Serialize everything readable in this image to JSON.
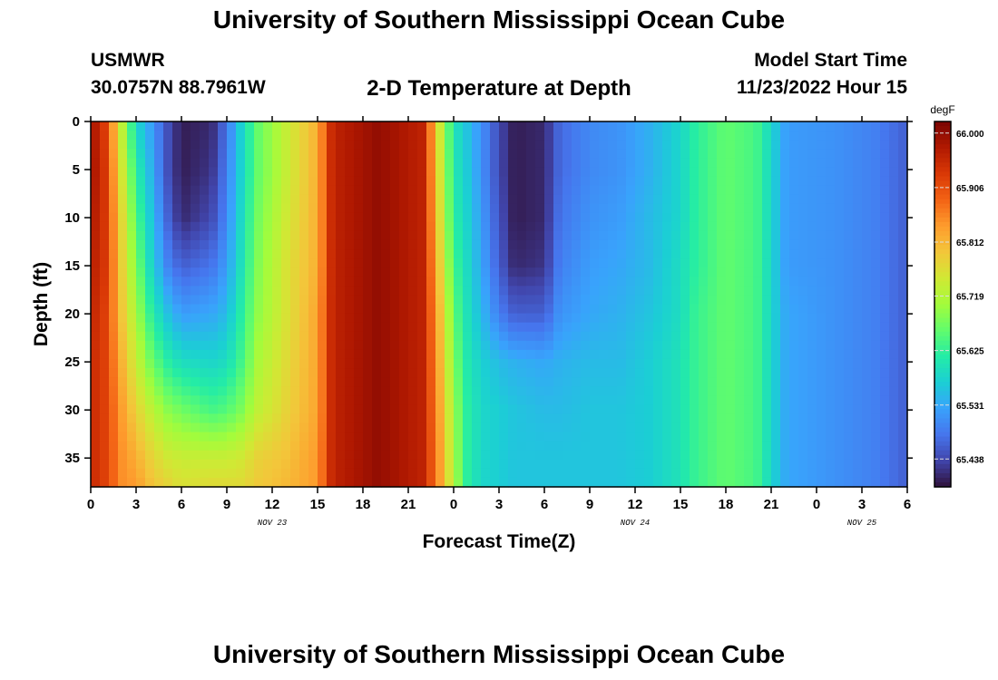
{
  "header": {
    "title": "University of Southern Mississippi Ocean Cube",
    "station": "USMWR",
    "coords": "30.0757N  88.7961W",
    "subtitle": "2-D Temperature at Depth",
    "start_label": "Model Start Time",
    "start_value": "11/23/2022 Hour 15"
  },
  "footer": {
    "title": "University of Southern Mississippi Ocean Cube"
  },
  "chart_data": {
    "type": "heatmap",
    "title": "2-D Temperature at Depth",
    "xlabel": "Forecast Time(Z)",
    "ylabel": "Depth (ft)",
    "x_tick_labels": [
      "0",
      "3",
      "6",
      "9",
      "12",
      "15",
      "18",
      "21",
      "0",
      "3",
      "6",
      "9",
      "12",
      "15",
      "18",
      "21",
      "0",
      "3",
      "6"
    ],
    "date_labels": [
      {
        "label": "NOV 23",
        "hours_from_first_tick": 12
      },
      {
        "label": "NOV 24",
        "hours_from_first_tick": 36
      },
      {
        "label": "NOV 25",
        "hours_from_first_tick": 51
      }
    ],
    "x_range_hours": [
      0,
      54
    ],
    "y_ticks": [
      0,
      5,
      10,
      15,
      20,
      25,
      30,
      35
    ],
    "ylim": [
      0,
      38
    ],
    "y_inverted": true,
    "colorbar": {
      "unit": "degF",
      "ticks": [
        "66.000",
        "65.906",
        "65.812",
        "65.719",
        "65.625",
        "65.531",
        "65.438"
      ],
      "min": 65.39,
      "max": 66.02,
      "colors": [
        "#30123b",
        "#4145ab",
        "#4675ed",
        "#39a2fc",
        "#1bcfd4",
        "#24eca6",
        "#61fc6c",
        "#a4fc3b",
        "#d1e834",
        "#f3c63a",
        "#fe9b2d",
        "#f36315",
        "#d93806",
        "#b11901",
        "#7a0403"
      ]
    },
    "profile_depths_ft": [
      0,
      5,
      10,
      15,
      20,
      25,
      30,
      35,
      38
    ],
    "temperature_profiles_degF": [
      {
        "hour": 0,
        "values": [
          65.99,
          65.99,
          65.98,
          65.97,
          65.96,
          65.95,
          65.95,
          65.95,
          65.95
        ]
      },
      {
        "hour": 1,
        "values": [
          65.92,
          65.93,
          65.93,
          65.93,
          65.92,
          65.92,
          65.92,
          65.92,
          65.92
        ]
      },
      {
        "hour": 2,
        "values": [
          65.74,
          65.76,
          65.78,
          65.79,
          65.8,
          65.82,
          65.84,
          65.85,
          65.85
        ]
      },
      {
        "hour": 3,
        "values": [
          65.58,
          65.62,
          65.65,
          65.68,
          65.71,
          65.74,
          65.78,
          65.82,
          65.84
        ]
      },
      {
        "hour": 4,
        "values": [
          65.52,
          65.54,
          65.56,
          65.58,
          65.62,
          65.67,
          65.73,
          65.78,
          65.8
        ]
      },
      {
        "hour": 5,
        "values": [
          65.45,
          65.45,
          65.47,
          65.5,
          65.56,
          65.62,
          65.69,
          65.75,
          65.78
        ]
      },
      {
        "hour": 6,
        "values": [
          65.4,
          65.4,
          65.41,
          65.46,
          65.52,
          65.59,
          65.67,
          65.74,
          65.76
        ]
      },
      {
        "hour": 8,
        "values": [
          65.41,
          65.42,
          65.44,
          65.48,
          65.53,
          65.58,
          65.64,
          65.74,
          65.77
        ]
      },
      {
        "hour": 9,
        "values": [
          65.48,
          65.49,
          65.5,
          65.52,
          65.55,
          65.59,
          65.65,
          65.74,
          65.77
        ]
      },
      {
        "hour": 10,
        "values": [
          65.58,
          65.58,
          65.59,
          65.6,
          65.62,
          65.64,
          65.68,
          65.75,
          65.77
        ]
      },
      {
        "hour": 11,
        "values": [
          65.66,
          65.66,
          65.67,
          65.68,
          65.69,
          65.71,
          65.73,
          65.78,
          65.79
        ]
      },
      {
        "hour": 13,
        "values": [
          65.74,
          65.74,
          65.75,
          65.76,
          65.76,
          65.77,
          65.78,
          65.8,
          65.81
        ]
      },
      {
        "hour": 15,
        "values": [
          65.82,
          65.82,
          65.82,
          65.82,
          65.83,
          65.83,
          65.83,
          65.84,
          65.84
        ]
      },
      {
        "hour": 16,
        "values": [
          65.96,
          65.96,
          65.96,
          65.96,
          65.96,
          65.96,
          65.96,
          65.96,
          65.96
        ]
      },
      {
        "hour": 19,
        "values": [
          66.0,
          66.0,
          66.0,
          66.0,
          66.0,
          66.0,
          66.0,
          66.0,
          66.0
        ]
      },
      {
        "hour": 22,
        "values": [
          65.96,
          65.96,
          65.96,
          65.96,
          65.96,
          65.96,
          65.96,
          65.96,
          65.96
        ]
      },
      {
        "hour": 23,
        "values": [
          65.76,
          65.77,
          65.78,
          65.8,
          65.82,
          65.83,
          65.84,
          65.85,
          65.85
        ]
      },
      {
        "hour": 24,
        "values": [
          65.6,
          65.61,
          65.62,
          65.64,
          65.66,
          65.68,
          65.7,
          65.71,
          65.72
        ]
      },
      {
        "hour": 25,
        "values": [
          65.55,
          65.56,
          65.57,
          65.58,
          65.59,
          65.6,
          65.61,
          65.61,
          65.61
        ]
      },
      {
        "hour": 26,
        "values": [
          65.5,
          65.5,
          65.51,
          65.52,
          65.54,
          65.57,
          65.58,
          65.58,
          65.58
        ]
      },
      {
        "hour": 27,
        "values": [
          65.44,
          65.44,
          65.45,
          65.46,
          65.49,
          65.55,
          65.57,
          65.57,
          65.57
        ]
      },
      {
        "hour": 28,
        "values": [
          65.4,
          65.4,
          65.4,
          65.41,
          65.46,
          65.54,
          65.56,
          65.56,
          65.56
        ]
      },
      {
        "hour": 30,
        "values": [
          65.41,
          65.41,
          65.41,
          65.42,
          65.46,
          65.53,
          65.55,
          65.56,
          65.56
        ]
      },
      {
        "hour": 31,
        "values": [
          65.47,
          65.47,
          65.48,
          65.49,
          65.51,
          65.54,
          65.55,
          65.56,
          65.56
        ]
      },
      {
        "hour": 33,
        "values": [
          65.5,
          65.5,
          65.51,
          65.52,
          65.53,
          65.55,
          65.56,
          65.56,
          65.56
        ]
      },
      {
        "hour": 35,
        "values": [
          65.51,
          65.51,
          65.52,
          65.53,
          65.54,
          65.55,
          65.56,
          65.56,
          65.56
        ]
      },
      {
        "hour": 37,
        "values": [
          65.54,
          65.54,
          65.55,
          65.55,
          65.56,
          65.57,
          65.57,
          65.57,
          65.57
        ]
      },
      {
        "hour": 39,
        "values": [
          65.58,
          65.58,
          65.58,
          65.59,
          65.59,
          65.6,
          65.6,
          65.6,
          65.6
        ]
      },
      {
        "hour": 40,
        "values": [
          65.62,
          65.62,
          65.62,
          65.62,
          65.63,
          65.63,
          65.63,
          65.63,
          65.63
        ]
      },
      {
        "hour": 42,
        "values": [
          65.66,
          65.66,
          65.66,
          65.66,
          65.66,
          65.66,
          65.66,
          65.66,
          65.66
        ]
      },
      {
        "hour": 44,
        "values": [
          65.64,
          65.64,
          65.64,
          65.64,
          65.64,
          65.64,
          65.64,
          65.64,
          65.64
        ]
      },
      {
        "hour": 45,
        "values": [
          65.58,
          65.58,
          65.58,
          65.58,
          65.58,
          65.58,
          65.58,
          65.58,
          65.58
        ]
      },
      {
        "hour": 46,
        "values": [
          65.52,
          65.52,
          65.52,
          65.52,
          65.53,
          65.53,
          65.53,
          65.53,
          65.53
        ]
      },
      {
        "hour": 49,
        "values": [
          65.51,
          65.51,
          65.51,
          65.51,
          65.51,
          65.51,
          65.51,
          65.51,
          65.51
        ]
      },
      {
        "hour": 52,
        "values": [
          65.49,
          65.49,
          65.49,
          65.49,
          65.49,
          65.49,
          65.49,
          65.49,
          65.49
        ]
      },
      {
        "hour": 54,
        "values": [
          65.46,
          65.46,
          65.46,
          65.46,
          65.46,
          65.46,
          65.46,
          65.46,
          65.46
        ]
      }
    ],
    "grid": false,
    "legend": "colorbar-right"
  }
}
